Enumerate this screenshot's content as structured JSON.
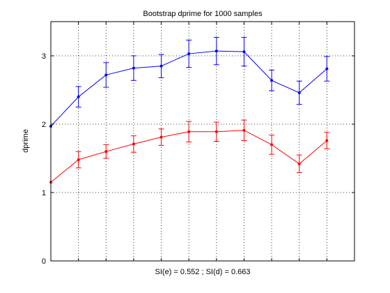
{
  "chart_data": {
    "type": "line",
    "title": "Bootstrap dprime for 1000 samples",
    "xlabel": "SI(e) = 0.552 ; SI(d) = 0.663",
    "ylabel": "dprime",
    "grid": true,
    "legend": "none",
    "x": [
      1,
      2,
      3,
      4,
      5,
      6,
      7,
      8,
      9,
      10,
      11,
      12
    ],
    "xlim": [
      1,
      12
    ],
    "ylim": [
      0,
      3.5
    ],
    "yticks": [
      0,
      1,
      2,
      3
    ],
    "xtick_labels_shown": false,
    "series": [
      {
        "color": "#0000ff",
        "values": [
          1.97,
          2.4,
          2.72,
          2.82,
          2.85,
          3.03,
          3.07,
          3.06,
          2.64,
          2.46,
          2.81
        ],
        "err": [
          0.0,
          0.15,
          0.18,
          0.18,
          0.17,
          0.2,
          0.2,
          0.21,
          0.15,
          0.17,
          0.18
        ],
        "x": [
          1,
          2,
          3,
          4,
          5,
          6,
          7,
          8,
          9,
          10,
          11
        ]
      },
      {
        "color": "#ff0000",
        "values": [
          1.15,
          1.48,
          1.6,
          1.71,
          1.81,
          1.89,
          1.89,
          1.91,
          1.7,
          1.42,
          1.76
        ],
        "err": [
          0.0,
          0.12,
          0.1,
          0.12,
          0.12,
          0.15,
          0.14,
          0.15,
          0.14,
          0.13,
          0.12
        ],
        "x": [
          1,
          2,
          3,
          4,
          5,
          6,
          7,
          8,
          9,
          10,
          11
        ]
      }
    ]
  }
}
